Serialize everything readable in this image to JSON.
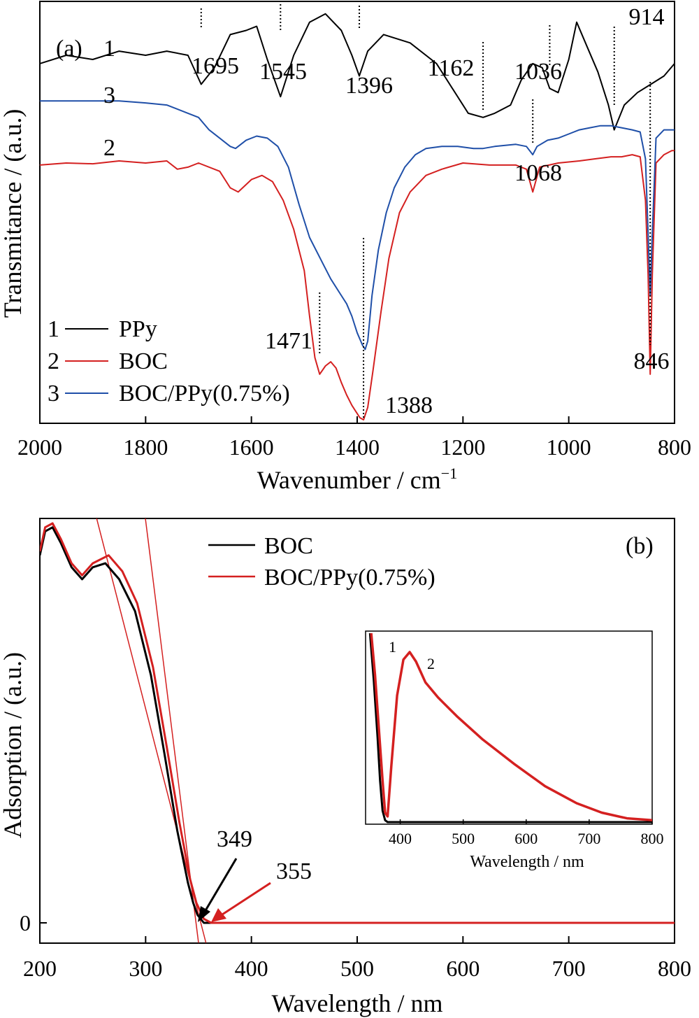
{
  "chart_data": [
    {
      "type": "line",
      "panel_label": "(a)",
      "xlabel": "Wavenumber / cm",
      "xlabel_superscript": "−1",
      "ylabel": "Transmitance / (a.u.)",
      "xlim": [
        2000,
        800
      ],
      "x_ticks": [
        "2000",
        "1800",
        "1600",
        "1400",
        "1200",
        "1000",
        "800"
      ],
      "grid": false,
      "legend_position": "bottom-left",
      "series": [
        {
          "name": "PPy",
          "legend_number": "1",
          "curve_label": "1",
          "color": "#000000",
          "x": [
            2000,
            1950,
            1900,
            1850,
            1800,
            1760,
            1720,
            1695,
            1670,
            1640,
            1610,
            1590,
            1570,
            1545,
            1520,
            1490,
            1460,
            1430,
            1410,
            1396,
            1380,
            1350,
            1300,
            1250,
            1220,
            1190,
            1162,
            1140,
            1110,
            1090,
            1068,
            1050,
            1036,
            1020,
            1000,
            985,
            965,
            945,
            925,
            914,
            895,
            870,
            845,
            820,
            800
          ],
          "y": [
            8.6,
            8.8,
            8.7,
            8.9,
            8.8,
            8.9,
            8.8,
            8.1,
            8.5,
            9.3,
            9.4,
            9.5,
            8.7,
            7.8,
            8.8,
            9.6,
            9.8,
            9.4,
            8.8,
            8.3,
            8.9,
            9.3,
            9.1,
            8.6,
            8.0,
            7.4,
            7.3,
            7.4,
            7.6,
            8.2,
            8.6,
            8.5,
            8.0,
            7.9,
            8.7,
            9.6,
            9.0,
            8.4,
            7.6,
            7.0,
            7.6,
            7.9,
            8.1,
            8.3,
            8.6
          ]
        },
        {
          "name": "BOC",
          "legend_number": "2",
          "curve_label": "2",
          "color": "#d42020",
          "x": [
            2000,
            1950,
            1900,
            1850,
            1800,
            1760,
            1740,
            1720,
            1700,
            1660,
            1640,
            1625,
            1600,
            1580,
            1560,
            1540,
            1520,
            1500,
            1490,
            1480,
            1471,
            1460,
            1450,
            1440,
            1430,
            1420,
            1410,
            1400,
            1395,
            1388,
            1380,
            1370,
            1355,
            1340,
            1320,
            1300,
            1270,
            1240,
            1200,
            1150,
            1100,
            1080,
            1068,
            1055,
            1020,
            980,
            950,
            920,
            900,
            880,
            865,
            855,
            850,
            846,
            842,
            835,
            820,
            805,
            800
          ],
          "y": [
            6.15,
            6.2,
            6.18,
            6.25,
            6.2,
            6.25,
            6.05,
            6.1,
            6.2,
            6.0,
            5.6,
            5.5,
            5.8,
            5.9,
            5.75,
            5.3,
            4.6,
            3.6,
            2.5,
            1.5,
            1.1,
            1.3,
            1.4,
            1.25,
            0.9,
            0.6,
            0.35,
            0.15,
            0.05,
            0.0,
            0.3,
            1.2,
            2.6,
            3.9,
            5.0,
            5.5,
            5.9,
            6.05,
            6.2,
            6.15,
            6.15,
            6.05,
            5.5,
            6.1,
            6.2,
            6.25,
            6.3,
            6.35,
            6.35,
            6.4,
            6.35,
            5.3,
            3.5,
            1.1,
            3.5,
            6.2,
            6.4,
            6.5,
            6.5
          ]
        },
        {
          "name": "BOC/PPy(0.75%)",
          "legend_number": "3",
          "curve_label": "3",
          "color": "#1f4fa8",
          "x": [
            2000,
            1950,
            1900,
            1850,
            1800,
            1760,
            1720,
            1700,
            1680,
            1660,
            1640,
            1630,
            1610,
            1590,
            1570,
            1550,
            1530,
            1510,
            1490,
            1470,
            1450,
            1430,
            1420,
            1410,
            1400,
            1390,
            1385,
            1380,
            1372,
            1360,
            1345,
            1330,
            1310,
            1290,
            1270,
            1240,
            1210,
            1180,
            1162,
            1140,
            1100,
            1080,
            1068,
            1060,
            1040,
            1020,
            1000,
            980,
            960,
            940,
            920,
            900,
            880,
            865,
            855,
            850,
            846,
            842,
            835,
            820,
            805,
            800
          ],
          "y": [
            7.7,
            7.7,
            7.7,
            7.7,
            7.65,
            7.6,
            7.4,
            7.3,
            7.0,
            6.8,
            6.6,
            6.55,
            6.75,
            6.85,
            6.8,
            6.6,
            6.1,
            5.2,
            4.4,
            3.9,
            3.4,
            3.0,
            2.8,
            2.5,
            2.1,
            1.8,
            1.7,
            1.9,
            3.0,
            4.1,
            5.0,
            5.6,
            6.1,
            6.4,
            6.55,
            6.6,
            6.6,
            6.55,
            6.55,
            6.6,
            6.65,
            6.6,
            6.4,
            6.6,
            6.75,
            6.8,
            6.9,
            7.0,
            7.05,
            7.1,
            7.1,
            7.05,
            7.0,
            6.95,
            6.3,
            4.5,
            3.0,
            4.5,
            6.8,
            7.0,
            7.0,
            7.0
          ]
        }
      ],
      "annotations": [
        {
          "text": "1695",
          "x": 1695
        },
        {
          "text": "1545",
          "x": 1545
        },
        {
          "text": "1396",
          "x": 1396
        },
        {
          "text": "1162",
          "x": 1162
        },
        {
          "text": "1036",
          "x": 1036
        },
        {
          "text": "914",
          "x": 914
        },
        {
          "text": "1068",
          "x": 1068
        },
        {
          "text": "1471",
          "x": 1471
        },
        {
          "text": "1388",
          "x": 1388
        },
        {
          "text": "846",
          "x": 846
        }
      ]
    },
    {
      "type": "line",
      "panel_label": "(b)",
      "xlabel": "Wavelength / nm",
      "ylabel": "Adsorption / (a.u.)",
      "xlim": [
        200,
        800
      ],
      "x_ticks": [
        "200",
        "300",
        "400",
        "500",
        "600",
        "700",
        "800"
      ],
      "y_ticks": [
        "0"
      ],
      "grid": false,
      "legend_position": "top-center",
      "series": [
        {
          "name": "BOC",
          "color": "#000000",
          "x": [
            200,
            205,
            212,
            220,
            230,
            240,
            250,
            262,
            275,
            290,
            305,
            318,
            330,
            340,
            345,
            349,
            355,
            365,
            400,
            500,
            600,
            700,
            800
          ],
          "y": [
            0.92,
            0.98,
            0.99,
            0.95,
            0.89,
            0.86,
            0.89,
            0.9,
            0.86,
            0.78,
            0.62,
            0.42,
            0.23,
            0.1,
            0.05,
            0.02,
            0.0,
            0.0,
            0.0,
            0.0,
            0.0,
            0.0,
            0.0
          ]
        },
        {
          "name": "BOC/PPy(0.75%)",
          "color": "#d42020",
          "x": [
            200,
            205,
            212,
            220,
            230,
            240,
            250,
            265,
            278,
            292,
            307,
            320,
            332,
            342,
            348,
            355,
            362,
            380,
            400,
            500,
            600,
            700,
            800
          ],
          "y": [
            0.93,
            0.99,
            1.0,
            0.96,
            0.9,
            0.87,
            0.9,
            0.92,
            0.88,
            0.8,
            0.64,
            0.44,
            0.25,
            0.11,
            0.05,
            0.01,
            0.0,
            0.0,
            0.0,
            0.0,
            0.0,
            0.0,
            0.0
          ]
        }
      ],
      "tangent_lines": [
        {
          "x": [
            298,
            350
          ],
          "y": [
            1.05,
            -0.05
          ]
        },
        {
          "x": [
            250,
            357
          ],
          "y": [
            1.05,
            -0.05
          ]
        }
      ],
      "annotations": [
        {
          "text": "349",
          "x": 349,
          "color": "#000000"
        },
        {
          "text": "355",
          "x": 355,
          "color": "#d42020"
        }
      ],
      "inset": {
        "type": "line",
        "xlabel": "Wavelength / nm",
        "xlim": [
          345,
          800
        ],
        "x_ticks": [
          "400",
          "500",
          "600",
          "700",
          "800"
        ],
        "series": [
          {
            "curve_label": "1",
            "color": "#000000",
            "x": [
              352,
              358,
              364,
              368,
              372,
              376,
              380,
              395,
              420,
              500,
              600,
              700,
              800
            ],
            "y": [
              1.0,
              0.75,
              0.45,
              0.22,
              0.06,
              0.01,
              0.0,
              0.0,
              0.0,
              0.0,
              0.0,
              0.0,
              0.0
            ]
          },
          {
            "curve_label": "2",
            "color": "#d42020",
            "x": [
              354,
              360,
              366,
              372,
              376,
              380,
              386,
              395,
              405,
              415,
              425,
              440,
              460,
              490,
              530,
              580,
              630,
              680,
              720,
              760,
              800
            ],
            "y": [
              1.0,
              0.78,
              0.5,
              0.22,
              0.05,
              0.03,
              0.3,
              0.67,
              0.86,
              0.9,
              0.85,
              0.74,
              0.66,
              0.56,
              0.44,
              0.31,
              0.19,
              0.1,
              0.05,
              0.02,
              0.01
            ]
          }
        ]
      }
    }
  ]
}
